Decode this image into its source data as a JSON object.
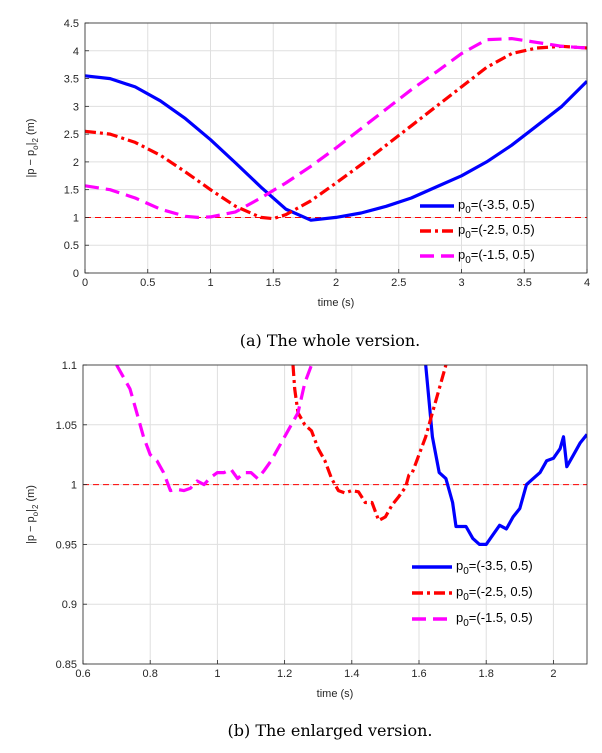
{
  "chart_data": [
    {
      "type": "line",
      "caption": "(a) The whole version.",
      "xlabel": "time (s)",
      "ylabel": "|p − p_o|_2 (m)",
      "ylabel_parts": {
        "a": "|p − p",
        "sub1": "o",
        "b": "|",
        "sub2": "2",
        "c": " (m)"
      },
      "xlim": [
        0,
        4
      ],
      "ylim": [
        0,
        4.5
      ],
      "xticks": [
        0,
        0.5,
        1,
        1.5,
        2,
        2.5,
        3,
        3.5,
        4
      ],
      "xtick_labels": [
        "0",
        "0.5",
        "1",
        "1.5",
        "2",
        "2.5",
        "3",
        "3.5",
        "4"
      ],
      "yticks": [
        0,
        0.5,
        1,
        1.5,
        2,
        2.5,
        3,
        3.5,
        4,
        4.5
      ],
      "ytick_labels": [
        "0",
        "0.5",
        "1",
        "1.5",
        "2",
        "2.5",
        "3",
        "3.5",
        "4",
        "4.5"
      ],
      "grid": true,
      "legend_position": "right",
      "reference_line": {
        "y": 1,
        "color": "#ff0000",
        "style": "dashed"
      },
      "series": [
        {
          "label_main": "p",
          "label_sub": "0",
          "label_rest": "=(-3.5, 0.5)",
          "color": "#0000ff",
          "style": "solid",
          "x": [
            0,
            0.2,
            0.4,
            0.6,
            0.8,
            1.0,
            1.2,
            1.4,
            1.6,
            1.8,
            2.0,
            2.2,
            2.4,
            2.6,
            2.8,
            3.0,
            3.2,
            3.4,
            3.6,
            3.8,
            4.0
          ],
          "y": [
            3.55,
            3.5,
            3.35,
            3.1,
            2.78,
            2.4,
            1.98,
            1.55,
            1.15,
            0.95,
            1.0,
            1.08,
            1.2,
            1.35,
            1.55,
            1.75,
            2.0,
            2.3,
            2.65,
            3.0,
            3.45
          ]
        },
        {
          "label_main": "p",
          "label_sub": "0",
          "label_rest": "=(-2.5, 0.5)",
          "color": "#ff0000",
          "style": "dashdot",
          "x": [
            0,
            0.2,
            0.4,
            0.6,
            0.8,
            1.0,
            1.2,
            1.4,
            1.5,
            1.6,
            1.8,
            2.0,
            2.2,
            2.4,
            2.6,
            2.8,
            3.0,
            3.2,
            3.4,
            3.6,
            3.8,
            4.0
          ],
          "y": [
            2.55,
            2.5,
            2.35,
            2.12,
            1.82,
            1.5,
            1.2,
            1.0,
            0.98,
            1.05,
            1.3,
            1.62,
            1.95,
            2.3,
            2.65,
            3.0,
            3.35,
            3.7,
            3.95,
            4.05,
            4.08,
            4.05
          ]
        },
        {
          "label_main": "p",
          "label_sub": "0",
          "label_rest": "=(-1.5, 0.5)",
          "color": "#ff00ff",
          "style": "dashed",
          "x": [
            0,
            0.2,
            0.4,
            0.6,
            0.8,
            0.9,
            1.0,
            1.2,
            1.4,
            1.6,
            1.8,
            2.0,
            2.2,
            2.4,
            2.6,
            2.8,
            3.0,
            3.2,
            3.4,
            3.6,
            3.8,
            4.0
          ],
          "y": [
            1.57,
            1.5,
            1.35,
            1.15,
            1.02,
            1.0,
            1.01,
            1.1,
            1.35,
            1.62,
            1.92,
            2.25,
            2.6,
            2.95,
            3.3,
            3.62,
            3.95,
            4.2,
            4.22,
            4.15,
            4.08,
            4.05
          ]
        }
      ]
    },
    {
      "type": "line",
      "caption": "(b) The enlarged version.",
      "xlabel": "time (s)",
      "ylabel": "|p − p_o|_2 (m)",
      "ylabel_parts": {
        "a": "|p − p",
        "sub1": "o",
        "b": "|",
        "sub2": "2",
        "c": " (m)"
      },
      "xlim": [
        0.6,
        2.1
      ],
      "ylim": [
        0.85,
        1.1
      ],
      "xticks": [
        0.6,
        0.8,
        1,
        1.2,
        1.4,
        1.6,
        1.8,
        2
      ],
      "xtick_labels": [
        "0.6",
        "0.8",
        "1",
        "1.2",
        "1.4",
        "1.6",
        "1.8",
        "2"
      ],
      "yticks": [
        0.85,
        0.9,
        0.95,
        1,
        1.05,
        1.1
      ],
      "ytick_labels": [
        "0.85",
        "0.9",
        "0.95",
        "1",
        "1.05",
        "1.1"
      ],
      "grid": true,
      "legend_position": "bottom-right",
      "reference_line": {
        "y": 1,
        "color": "#ff0000",
        "style": "dashed"
      },
      "series": [
        {
          "label_main": "p",
          "label_sub": "0",
          "label_rest": "=(-3.5, 0.5)",
          "color": "#0000ff",
          "style": "solid",
          "x": [
            1.62,
            1.64,
            1.66,
            1.68,
            1.7,
            1.71,
            1.72,
            1.74,
            1.75,
            1.76,
            1.78,
            1.8,
            1.82,
            1.84,
            1.86,
            1.88,
            1.9,
            1.92,
            1.94,
            1.96,
            1.98,
            2.0,
            2.02,
            2.03,
            2.04,
            2.06,
            2.08,
            2.1
          ],
          "y": [
            1.1,
            1.04,
            1.01,
            1.005,
            0.985,
            0.965,
            0.965,
            0.965,
            0.96,
            0.955,
            0.95,
            0.95,
            0.958,
            0.966,
            0.963,
            0.973,
            0.98,
            1.0,
            1.005,
            1.01,
            1.02,
            1.022,
            1.03,
            1.04,
            1.015,
            1.025,
            1.035,
            1.042
          ]
        },
        {
          "label_main": "p",
          "label_sub": "0",
          "label_rest": "=(-2.5, 0.5)",
          "color": "#ff0000",
          "style": "dashdot",
          "x": [
            1.225,
            1.23,
            1.24,
            1.26,
            1.28,
            1.3,
            1.32,
            1.34,
            1.36,
            1.38,
            1.4,
            1.42,
            1.44,
            1.46,
            1.48,
            1.5,
            1.52,
            1.54,
            1.56,
            1.57,
            1.58,
            1.6,
            1.62,
            1.64,
            1.66,
            1.68
          ],
          "y": [
            1.1,
            1.08,
            1.06,
            1.05,
            1.045,
            1.03,
            1.02,
            1.005,
            0.995,
            0.993,
            0.995,
            0.994,
            0.985,
            0.985,
            0.97,
            0.973,
            0.983,
            0.99,
            0.998,
            1.008,
            1.01,
            1.025,
            1.04,
            1.06,
            1.08,
            1.1
          ]
        },
        {
          "label_main": "p",
          "label_sub": "0",
          "label_rest": "=(-1.5, 0.5)",
          "color": "#ff00ff",
          "style": "dashed",
          "x": [
            0.7,
            0.74,
            0.76,
            0.78,
            0.8,
            0.82,
            0.84,
            0.86,
            0.88,
            0.9,
            0.92,
            0.94,
            0.96,
            0.98,
            1.0,
            1.02,
            1.04,
            1.06,
            1.08,
            1.1,
            1.12,
            1.14,
            1.16,
            1.18,
            1.2,
            1.22,
            1.24,
            1.26,
            1.28
          ],
          "y": [
            1.1,
            1.08,
            1.06,
            1.04,
            1.025,
            1.02,
            1.01,
            0.995,
            0.996,
            0.995,
            0.997,
            1.003,
            1.0,
            1.006,
            1.01,
            1.01,
            1.013,
            1.005,
            1.01,
            1.01,
            1.005,
            1.012,
            1.02,
            1.03,
            1.04,
            1.05,
            1.06,
            1.085,
            1.1
          ]
        }
      ]
    }
  ]
}
